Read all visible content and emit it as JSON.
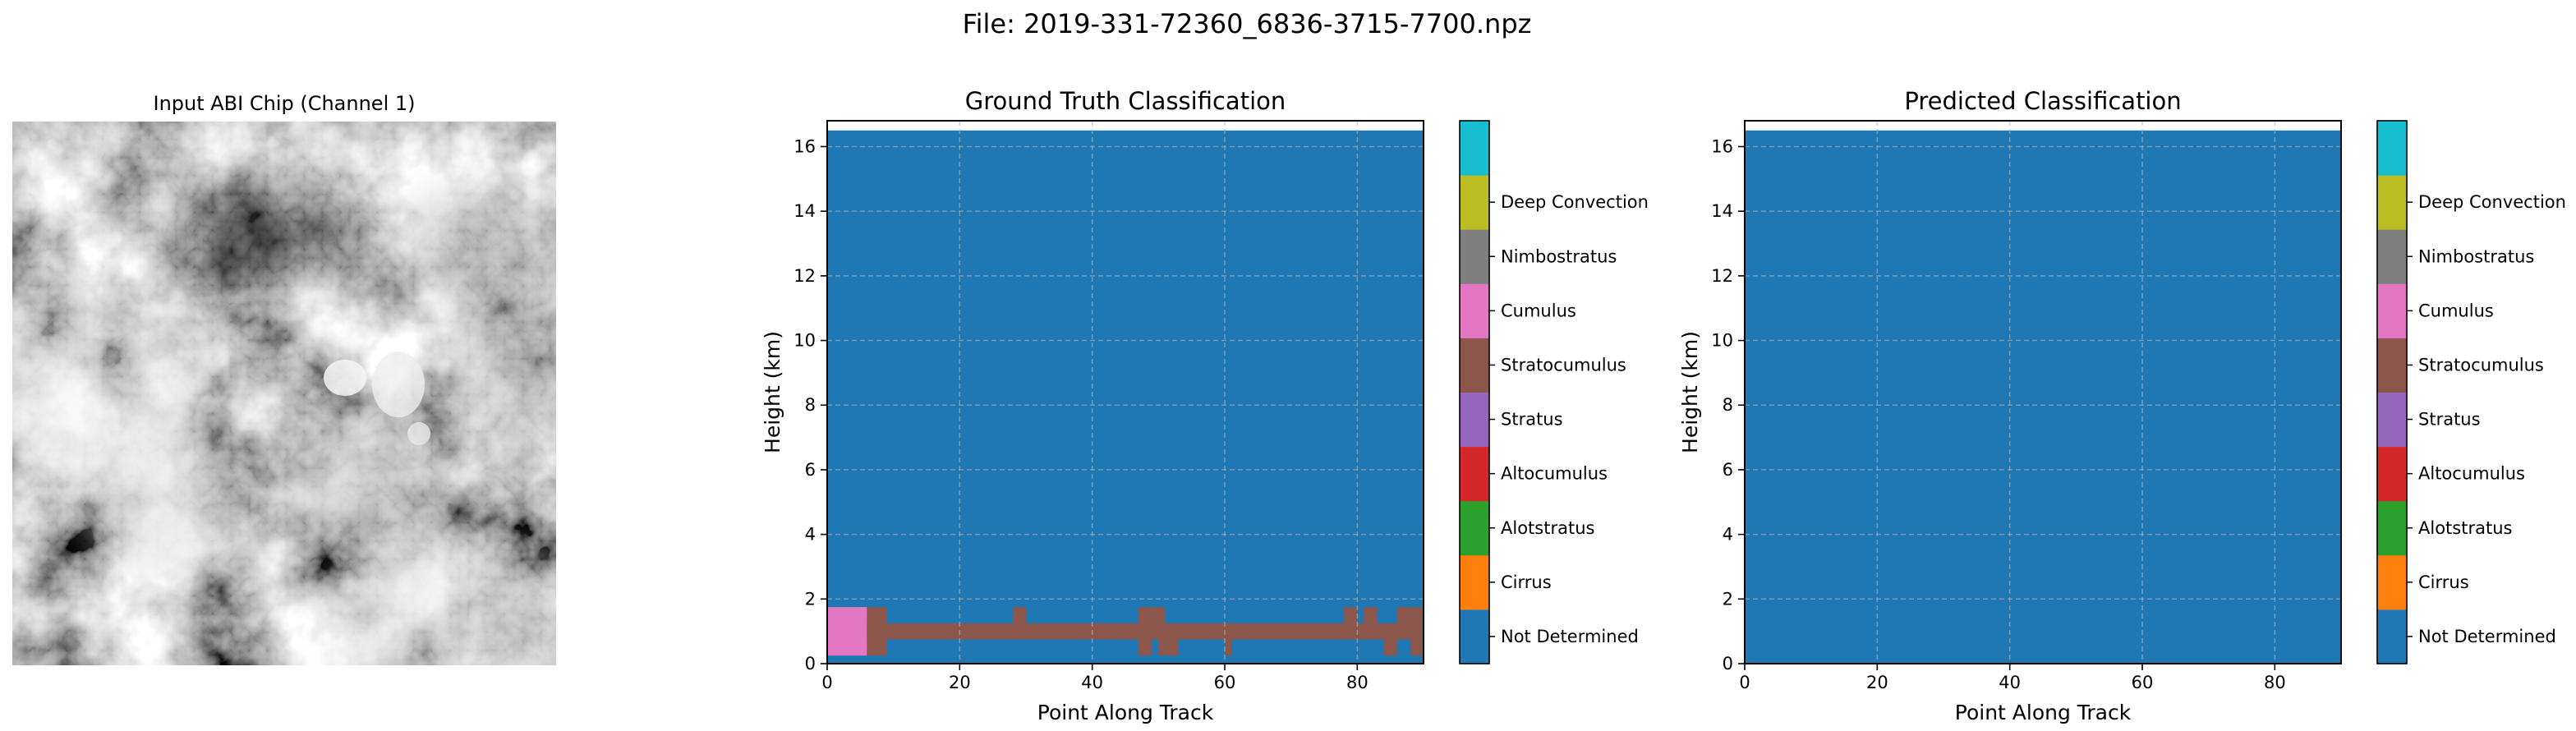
{
  "suptitle": "File: 2019-331-72360_6836-3715-7700.npz",
  "input_panel": {
    "title": "Input ABI Chip (Channel 1)"
  },
  "colorbar_classes": [
    {
      "label": "Not Determined",
      "color": "#1f77b4"
    },
    {
      "label": "Cirrus",
      "color": "#ff7f0e"
    },
    {
      "label": "Alotstratus",
      "color": "#2ca02c"
    },
    {
      "label": "Altocumulus",
      "color": "#d62728"
    },
    {
      "label": "Stratus",
      "color": "#9467bd"
    },
    {
      "label": "Stratocumulus",
      "color": "#8c564b"
    },
    {
      "label": "Cumulus",
      "color": "#e377c2"
    },
    {
      "label": "Nimbostratus",
      "color": "#7f7f7f"
    },
    {
      "label": "Deep Convection",
      "color": "#bcbd22"
    },
    {
      "label": "",
      "color": "#17becf"
    }
  ],
  "chart_data": [
    {
      "type": "heatmap",
      "title": "Ground Truth Classification",
      "xlabel": "Point Along Track",
      "ylabel": "Height (km)",
      "xlim": [
        0,
        90
      ],
      "ylim": [
        0,
        16.8
      ],
      "xticks": [
        0,
        20,
        40,
        60,
        80
      ],
      "yticks": [
        0,
        2,
        4,
        6,
        8,
        10,
        12,
        14,
        16
      ],
      "grid": true,
      "background_class": "Not Determined",
      "regions": [
        {
          "class": "Cumulus",
          "x": [
            0,
            6
          ],
          "y": [
            0.25,
            1.75
          ]
        },
        {
          "class": "Stratocumulus",
          "x": [
            6,
            90
          ],
          "y": [
            0.75,
            1.25
          ]
        },
        {
          "class": "Stratocumulus",
          "x": [
            6,
            9
          ],
          "y": [
            0.25,
            1.75
          ]
        },
        {
          "class": "Stratocumulus",
          "x": [
            28,
            30
          ],
          "y": [
            1.25,
            1.75
          ]
        },
        {
          "class": "Stratocumulus",
          "x": [
            47,
            49
          ],
          "y": [
            0.25,
            1.75
          ]
        },
        {
          "class": "Stratocumulus",
          "x": [
            49,
            51
          ],
          "y": [
            1.25,
            1.75
          ]
        },
        {
          "class": "Stratocumulus",
          "x": [
            50,
            53
          ],
          "y": [
            0.25,
            0.75
          ]
        },
        {
          "class": "Stratocumulus",
          "x": [
            60,
            61
          ],
          "y": [
            0.25,
            0.75
          ]
        },
        {
          "class": "Stratocumulus",
          "x": [
            78,
            80
          ],
          "y": [
            1.25,
            1.75
          ]
        },
        {
          "class": "Stratocumulus",
          "x": [
            81,
            83
          ],
          "y": [
            1.25,
            1.75
          ]
        },
        {
          "class": "Stratocumulus",
          "x": [
            84,
            86
          ],
          "y": [
            0.25,
            0.75
          ]
        },
        {
          "class": "Stratocumulus",
          "x": [
            86,
            88
          ],
          "y": [
            1.25,
            1.75
          ]
        },
        {
          "class": "Stratocumulus",
          "x": [
            88,
            90
          ],
          "y": [
            0.25,
            1.75
          ]
        }
      ]
    },
    {
      "type": "heatmap",
      "title": "Predicted Classification",
      "xlabel": "Point Along Track",
      "ylabel": "Height (km)",
      "xlim": [
        0,
        90
      ],
      "ylim": [
        0,
        16.8
      ],
      "xticks": [
        0,
        20,
        40,
        60,
        80
      ],
      "yticks": [
        0,
        2,
        4,
        6,
        8,
        10,
        12,
        14,
        16
      ],
      "grid": true,
      "background_class": "Not Determined",
      "regions": []
    }
  ]
}
